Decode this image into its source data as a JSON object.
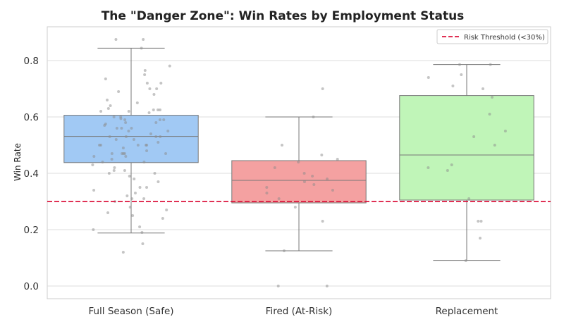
{
  "chart_data": {
    "type": "box",
    "title": "The \"Danger Zone\": Win Rates by Employment Status",
    "xlabel": "",
    "ylabel": "Win Rate",
    "ylim": [
      -0.045,
      0.92
    ],
    "yticks": [
      "0.0",
      "0.2",
      "0.4",
      "0.6",
      "0.8"
    ],
    "grid": true,
    "legend_position": "top-right",
    "threshold": {
      "value": 0.3,
      "label": "Risk Threshold (<30%)",
      "color": "#dc143c",
      "style": "dashed"
    },
    "categories": [
      "Full Season (Safe)",
      "Fired (At-Risk)",
      "Replacement"
    ],
    "boxes": [
      {
        "category": "Full Season (Safe)",
        "color": "#a1c9f4",
        "whisker_low": 0.188,
        "q1": 0.438,
        "median": 0.531,
        "q3": 0.606,
        "whisker_high": 0.844
      },
      {
        "category": "Fired (At-Risk)",
        "color": "#f4a1a1",
        "whisker_low": 0.125,
        "q1": 0.295,
        "median": 0.375,
        "q3": 0.445,
        "whisker_high": 0.6
      },
      {
        "category": "Replacement",
        "color": "#c0f5b8",
        "whisker_low": 0.091,
        "q1": 0.305,
        "median": 0.465,
        "q3": 0.676,
        "whisker_high": 0.786
      }
    ],
    "points": [
      [
        0.875,
        0.875,
        0.844,
        0.781,
        0.765,
        0.75,
        0.735,
        0.72,
        0.72,
        0.7,
        0.7,
        0.69,
        0.68,
        0.66,
        0.65,
        0.64,
        0.63,
        0.625,
        0.625,
        0.625,
        0.62,
        0.62,
        0.615,
        0.6,
        0.6,
        0.594,
        0.59,
        0.59,
        0.59,
        0.58,
        0.58,
        0.575,
        0.57,
        0.56,
        0.56,
        0.56,
        0.55,
        0.55,
        0.54,
        0.53,
        0.53,
        0.53,
        0.53,
        0.52,
        0.52,
        0.51,
        0.5,
        0.5,
        0.5,
        0.5,
        0.5,
        0.49,
        0.48,
        0.47,
        0.47,
        0.47,
        0.47,
        0.47,
        0.46,
        0.46,
        0.45,
        0.44,
        0.44,
        0.43,
        0.42,
        0.41,
        0.41,
        0.4,
        0.4,
        0.39,
        0.38,
        0.37,
        0.35,
        0.35,
        0.34,
        0.33,
        0.32,
        0.31,
        0.31,
        0.3,
        0.28,
        0.27,
        0.26,
        0.25,
        0.24,
        0.21,
        0.2,
        0.19,
        0.15,
        0.12
      ],
      [
        0.7,
        0.6,
        0.5,
        0.465,
        0.45,
        0.44,
        0.42,
        0.4,
        0.39,
        0.38,
        0.37,
        0.36,
        0.35,
        0.34,
        0.33,
        0.31,
        0.28,
        0.23,
        0.125,
        0.0,
        0.0
      ],
      [
        0.786,
        0.786,
        0.75,
        0.74,
        0.71,
        0.7,
        0.67,
        0.61,
        0.55,
        0.53,
        0.5,
        0.43,
        0.42,
        0.41,
        0.31,
        0.23,
        0.23,
        0.17,
        0.09
      ]
    ]
  }
}
